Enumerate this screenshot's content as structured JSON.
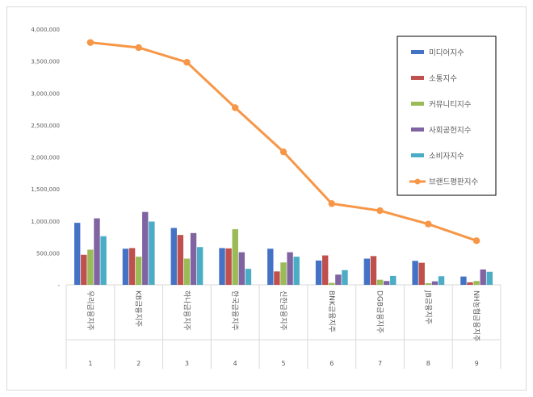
{
  "chart_data": {
    "type": "bar",
    "title": "",
    "xlabel": "",
    "ylabel": "",
    "ylim": [
      0,
      4000000
    ],
    "yticks": [
      0,
      500000,
      1000000,
      1500000,
      2000000,
      2500000,
      3000000,
      3500000,
      4000000
    ],
    "ytick_labels": [
      "-",
      "500,000",
      "1,000,000",
      "1,500,000",
      "2,000,000",
      "2,500,000",
      "3,000,000",
      "3,500,000",
      "4,000,000"
    ],
    "categories": [
      "1",
      "2",
      "3",
      "4",
      "5",
      "6",
      "7",
      "8",
      "9"
    ],
    "category_names": [
      "우리금융지주",
      "KB금융지주",
      "하나금융지주",
      "한국금융지주",
      "신한금융지주",
      "BNK금융지주",
      "DGB금융지주",
      "JB금융지주",
      "NH농협금융지주"
    ],
    "legend_position": "right",
    "grid": false,
    "series": [
      {
        "name": "미디어지수",
        "type": "bar",
        "color": "#4472c4",
        "values": [
          970000,
          565000,
          890000,
          575000,
          565000,
          380000,
          410000,
          375000,
          130000
        ]
      },
      {
        "name": "소통지수",
        "type": "bar",
        "color": "#c0504d",
        "values": [
          470000,
          575000,
          780000,
          570000,
          210000,
          460000,
          450000,
          345000,
          40000
        ]
      },
      {
        "name": "커뮤니티지수",
        "type": "bar",
        "color": "#9bbb59",
        "values": [
          550000,
          440000,
          410000,
          870000,
          350000,
          30000,
          80000,
          25000,
          60000
        ]
      },
      {
        "name": "사회공헌지수",
        "type": "bar",
        "color": "#8064a2",
        "values": [
          1040000,
          1140000,
          810000,
          510000,
          510000,
          160000,
          60000,
          55000,
          240000
        ]
      },
      {
        "name": "소비자지수",
        "type": "bar",
        "color": "#4bacc6",
        "values": [
          760000,
          990000,
          590000,
          250000,
          440000,
          230000,
          140000,
          135000,
          205000
        ]
      },
      {
        "name": "브랜드평판지수",
        "type": "line",
        "color": "#f79646",
        "values": [
          3790000,
          3710000,
          3480000,
          2770000,
          2080000,
          1270000,
          1160000,
          950000,
          690000
        ]
      }
    ]
  }
}
